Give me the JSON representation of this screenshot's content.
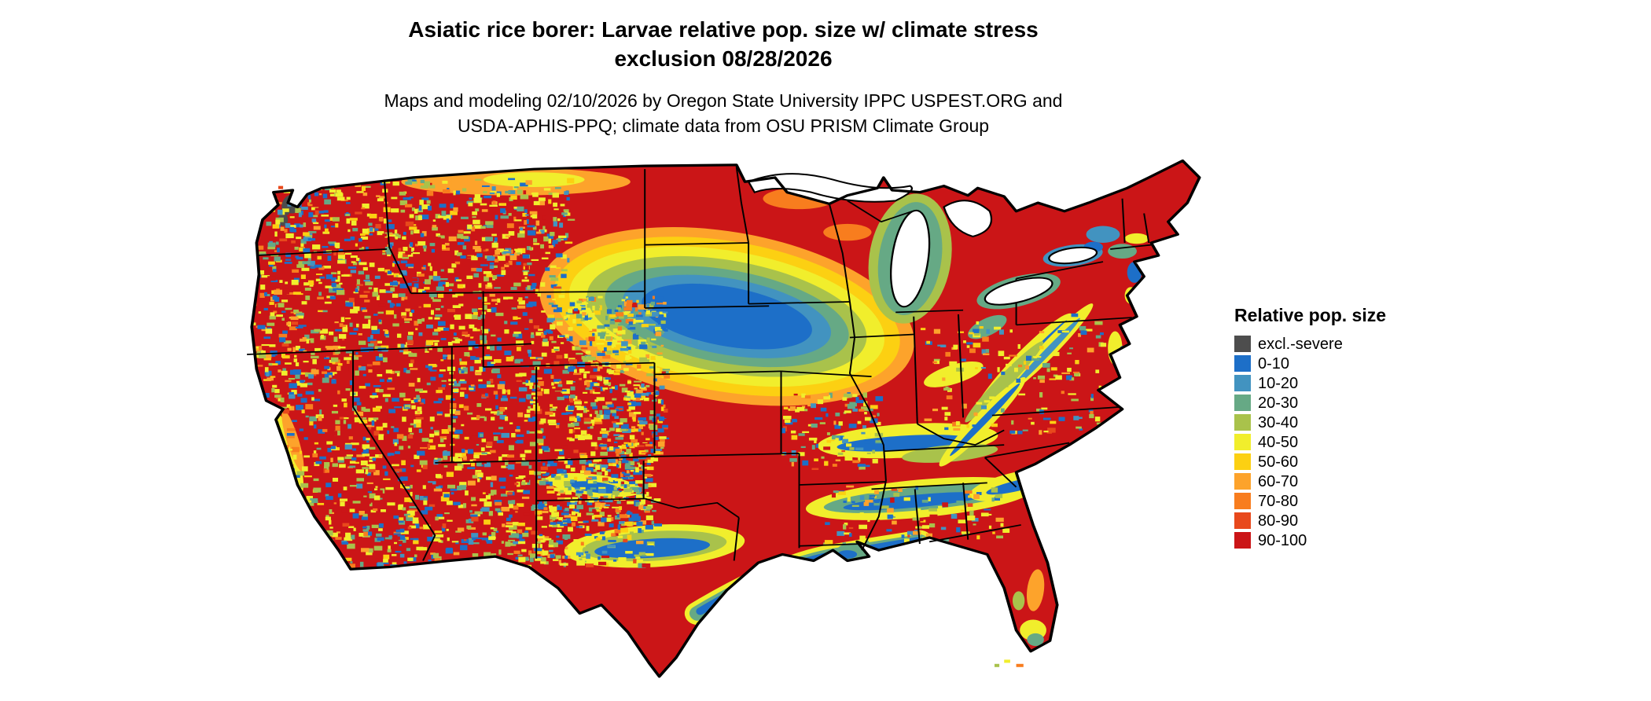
{
  "header": {
    "title_line1": "Asiatic rice borer: Larvae relative pop. size w/ climate stress",
    "title_line2": "exclusion 08/28/2026",
    "subtitle_line1": "Maps and modeling 02/10/2026 by Oregon State University IPPC USPEST.ORG and",
    "subtitle_line2": "USDA-APHIS-PPQ; climate data from OSU PRISM Climate Group"
  },
  "legend": {
    "title": "Relative pop. size",
    "items": [
      {
        "label": "excl.-severe",
        "color": "#4d4d4d"
      },
      {
        "label": "0-10",
        "color": "#1d6fc8"
      },
      {
        "label": "10-20",
        "color": "#4293c0"
      },
      {
        "label": "20-30",
        "color": "#66a985"
      },
      {
        "label": "30-40",
        "color": "#a9c24b"
      },
      {
        "label": "40-50",
        "color": "#f1ee2c"
      },
      {
        "label": "50-60",
        "color": "#fcd012"
      },
      {
        "label": "60-70",
        "color": "#fda32b"
      },
      {
        "label": "70-80",
        "color": "#f87d1e"
      },
      {
        "label": "80-90",
        "color": "#e8491c"
      },
      {
        "label": "90-100",
        "color": "#cb1517"
      }
    ]
  },
  "map": {
    "region": "Continental United States",
    "kind": "raster choropleth of relative population size with state boundaries"
  }
}
